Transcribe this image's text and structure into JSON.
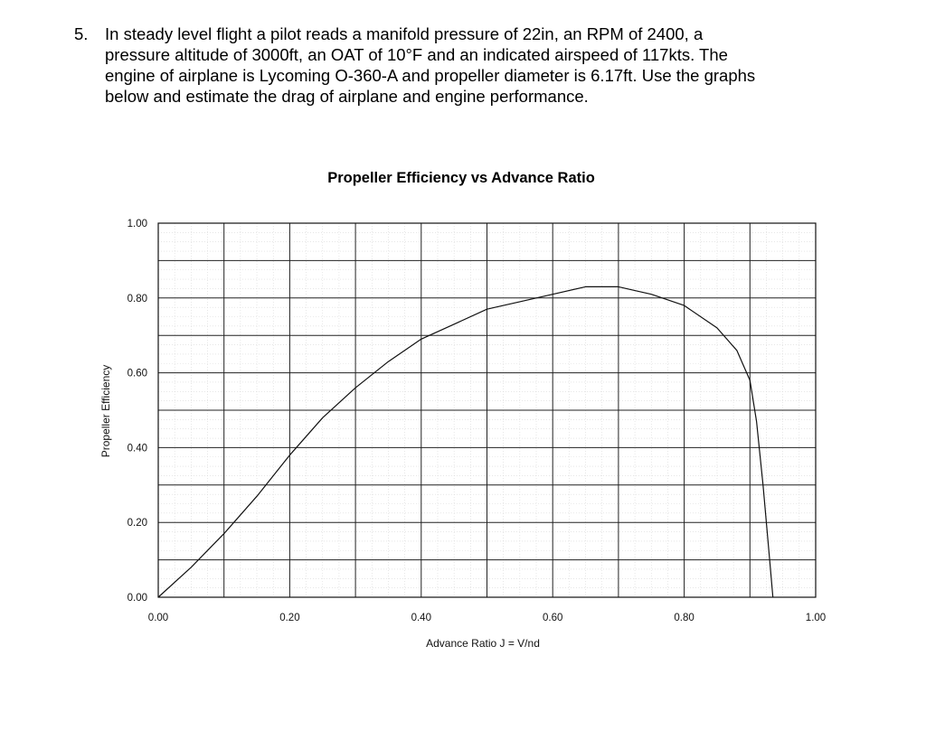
{
  "question": {
    "number": "5.",
    "lines": [
      "In steady level flight a pilot reads a manifold pressure of 22in, an RPM of 2400, a",
      "pressure altitude of 3000ft, an OAT of 10°F and an indicated airspeed of 117kts. The",
      "engine of airplane is Lycoming O-360-A and propeller diameter is 6.17ft. Use the graphs",
      "below and estimate the drag of airplane and engine performance."
    ]
  },
  "chart_data": {
    "type": "line",
    "title": "Propeller Efficiency vs Advance Ratio",
    "xlabel": "Advance Ratio J = V/nd",
    "ylabel": "Propeller Efficiency",
    "xlim": [
      0,
      1.0
    ],
    "ylim": [
      0,
      1.0
    ],
    "x_ticks": [
      "0.00",
      "0.20",
      "0.40",
      "0.60",
      "0.80",
      "1.00"
    ],
    "y_ticks": [
      "0.00",
      "0.20",
      "0.40",
      "0.60",
      "0.80",
      "1.00"
    ],
    "grid": true,
    "series": [
      {
        "x": [
          0.0,
          0.05,
          0.1,
          0.15,
          0.2,
          0.25,
          0.3,
          0.35,
          0.4,
          0.45,
          0.5,
          0.55,
          0.6,
          0.65,
          0.7,
          0.75,
          0.8,
          0.85,
          0.88,
          0.9,
          0.91,
          0.92,
          0.93,
          0.935
        ],
        "y": [
          0.0,
          0.08,
          0.17,
          0.27,
          0.38,
          0.48,
          0.56,
          0.63,
          0.69,
          0.73,
          0.77,
          0.79,
          0.81,
          0.83,
          0.83,
          0.81,
          0.78,
          0.72,
          0.66,
          0.58,
          0.47,
          0.3,
          0.1,
          0.0
        ]
      }
    ]
  }
}
